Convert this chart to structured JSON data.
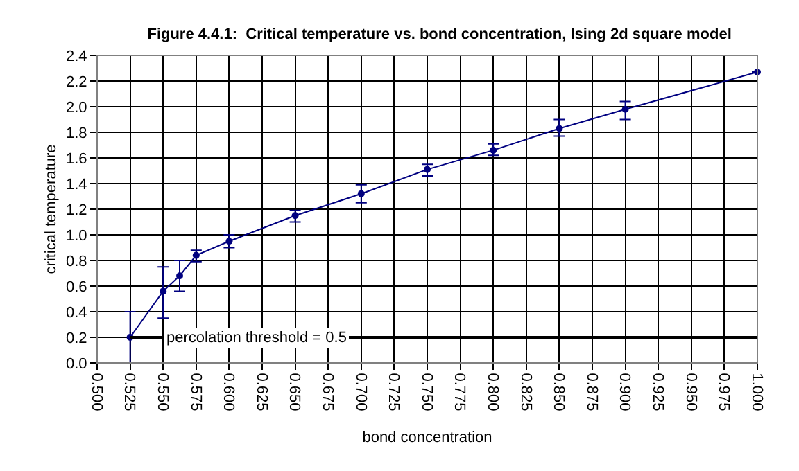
{
  "chart_data": {
    "type": "line",
    "title": "Figure 4.4.1:  Critical temperature vs. bond concentration, Ising 2d square model",
    "xlabel": "bond concentration",
    "ylabel": "critical temperature",
    "x": [
      0.525,
      0.55,
      0.5625,
      0.575,
      0.6,
      0.65,
      0.7,
      0.75,
      0.8,
      0.85,
      0.9,
      1.0
    ],
    "series": [
      {
        "color": "#000080",
        "values": [
          0.2,
          0.56,
          0.68,
          0.84,
          0.95,
          1.15,
          1.32,
          1.51,
          1.66,
          1.83,
          1.98,
          2.27
        ],
        "errors": [
          [
            0.0,
            0.4
          ],
          [
            0.35,
            0.75
          ],
          [
            0.56,
            0.8
          ],
          [
            0.79,
            0.88
          ],
          [
            0.9,
            1.0
          ],
          [
            1.1,
            1.19
          ],
          [
            1.25,
            1.39
          ],
          [
            1.46,
            1.55
          ],
          [
            1.62,
            1.71
          ],
          [
            1.77,
            1.9
          ],
          [
            1.9,
            2.04
          ],
          null
        ]
      },
      {
        "color": "#000000",
        "x": [
          0.525,
          1.0
        ],
        "values": [
          0.2,
          0.2
        ],
        "marker": "none"
      }
    ],
    "xlim": [
      0.5,
      1.0
    ],
    "xticks": [
      {
        "value": 0.5,
        "label": "0.500"
      },
      {
        "value": 0.525,
        "label": "0.525"
      },
      {
        "value": 0.55,
        "label": "0.550"
      },
      {
        "value": 0.575,
        "label": "0.575"
      },
      {
        "value": 0.6,
        "label": "0.600"
      },
      {
        "value": 0.625,
        "label": "0.625"
      },
      {
        "value": 0.65,
        "label": "0.650"
      },
      {
        "value": 0.675,
        "label": "0.675"
      },
      {
        "value": 0.7,
        "label": "0.700"
      },
      {
        "value": 0.725,
        "label": "0.725"
      },
      {
        "value": 0.75,
        "label": "0.750"
      },
      {
        "value": 0.775,
        "label": "0.775"
      },
      {
        "value": 0.8,
        "label": "0.800"
      },
      {
        "value": 0.825,
        "label": "0.825"
      },
      {
        "value": 0.85,
        "label": "0.850"
      },
      {
        "value": 0.875,
        "label": "0.875"
      },
      {
        "value": 0.9,
        "label": "0.900"
      },
      {
        "value": 0.925,
        "label": "0.925"
      },
      {
        "value": 0.95,
        "label": "0.950"
      },
      {
        "value": 0.975,
        "label": "0.975"
      },
      {
        "value": 1.0,
        "label": "1.000"
      }
    ],
    "ylim": [
      0,
      2.4
    ],
    "yticks": [
      {
        "value": 0,
        "label": "0.0"
      },
      {
        "value": 0.2,
        "label": "0.2"
      },
      {
        "value": 0.4,
        "label": "0.4"
      },
      {
        "value": 0.6,
        "label": "0.6"
      },
      {
        "value": 0.8,
        "label": "0.8"
      },
      {
        "value": 1.0,
        "label": "1.0"
      },
      {
        "value": 1.2,
        "label": "1.2"
      },
      {
        "value": 1.4,
        "label": "1.4"
      },
      {
        "value": 1.6,
        "label": "1.6"
      },
      {
        "value": 1.8,
        "label": "1.8"
      },
      {
        "value": 2.0,
        "label": "2.0"
      },
      {
        "value": 2.2,
        "label": "2.2"
      },
      {
        "value": 2.4,
        "label": "2.4"
      }
    ],
    "annotations": [
      "percolation threshold = 0.5"
    ],
    "grid": true,
    "marker": "circle",
    "line_style": "solid"
  }
}
